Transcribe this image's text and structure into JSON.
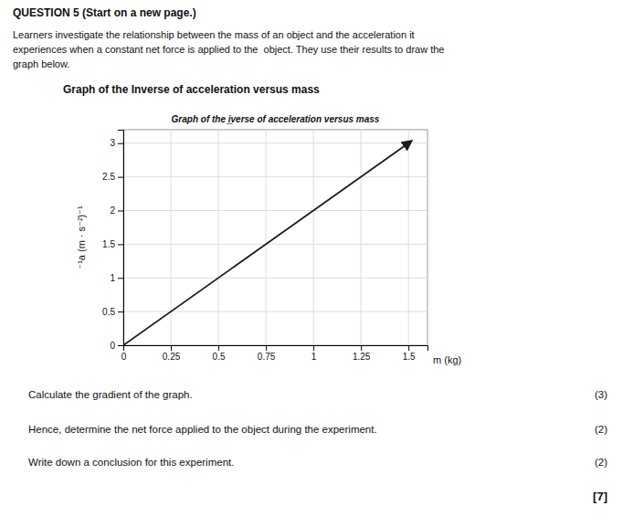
{
  "chart_data": {
    "type": "line",
    "title": "Graph of the i̲̲verse of acceleration versus mass",
    "xlabel": "m (kg)",
    "ylabel": "⁻¹a (m · s⁻²)⁻¹",
    "x": [
      0,
      1.5
    ],
    "values": [
      0,
      3.0
    ],
    "color": "#1a1a1a",
    "xlim": [
      0,
      1.6
    ],
    "ylim": [
      0,
      3.2
    ],
    "xticks": [
      0,
      0.25,
      0.5,
      0.75,
      1,
      1.25,
      1.5
    ],
    "yticks": [
      0,
      0.5,
      1,
      1.5,
      2,
      2.5,
      3
    ],
    "grid": true,
    "annotations": [
      "QUESTION 5 (Start on a new page.)",
      "Learners investigate the relationship between the mass of an object and the acceleration it",
      "experiences when a constant net force is applied to the  object. They use their results to draw the",
      "graph below.",
      "Graph of the Inverse of acceleration versus mass",
      "Calculate the gradient of the graph.",
      "(3)",
      "Hence, determine the net force applied to the object during the experiment.",
      "(2)",
      "Write down a conclusion for this experiment.",
      "(2)",
      "[7]"
    ]
  }
}
